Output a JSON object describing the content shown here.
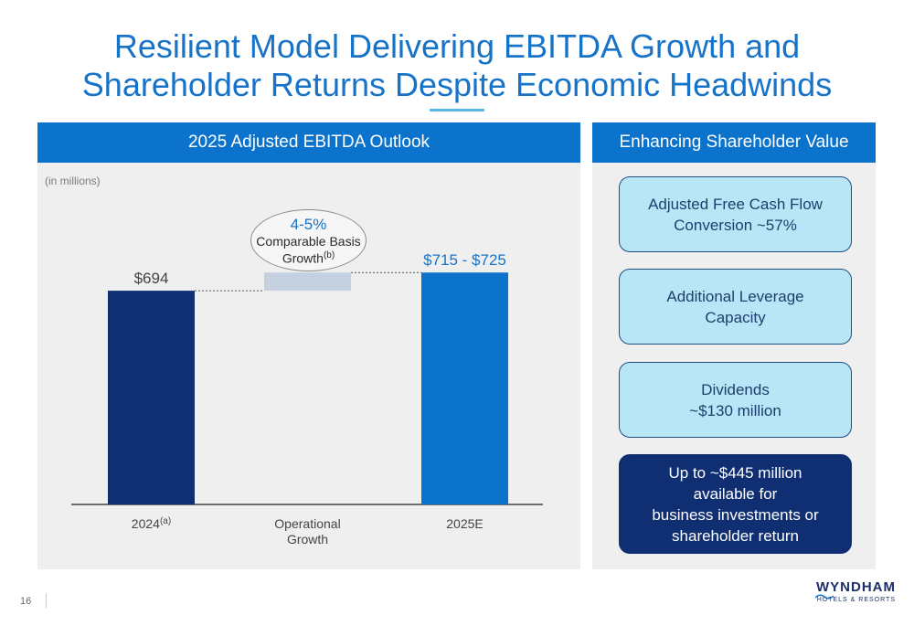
{
  "title": {
    "line1": "Resilient Model Delivering EBITDA Growth and",
    "line2": "Shareholder Returns Despite Economic Headwinds"
  },
  "left_panel": {
    "header": "2025 Adjusted EBITDA Outlook",
    "units": "(in millions)"
  },
  "chart_data": {
    "type": "bar",
    "subtype": "waterfall",
    "title": "2025 Adjusted EBITDA Outlook",
    "ylabel": "(in millions)",
    "ylim": [
      330,
      730
    ],
    "categories": [
      {
        "label": "2024",
        "footnote": "(a)"
      },
      {
        "label": "Operational Growth",
        "footnote": ""
      },
      {
        "label": "2025E",
        "footnote": ""
      }
    ],
    "bars": [
      {
        "name": "2024",
        "base": 0,
        "value": 694,
        "label": "$694",
        "color": "#0f2f72"
      },
      {
        "name": "Operational Growth",
        "base": 694,
        "value": 725,
        "label": "",
        "color": "#c5d1e0"
      },
      {
        "name": "2025E",
        "base": 0,
        "value": 725,
        "label": "$715 - $725",
        "color": "#0b73cc"
      }
    ],
    "annotation": {
      "pct": "4-5%",
      "line1": "Comparable Basis",
      "line2": "Growth",
      "footnote": "(b)"
    }
  },
  "right_panel": {
    "header": "Enhancing Shareholder Value",
    "cards": [
      {
        "line1": "Adjusted Free Cash Flow",
        "line2": "Conversion ~57%"
      },
      {
        "line1": "Additional Leverage",
        "line2": "Capacity"
      },
      {
        "line1": "Dividends",
        "line2": "~$130 million"
      },
      {
        "line1": "Up to ~$445 million",
        "line2": "available for",
        "line3": "business investments or",
        "line4": "shareholder return"
      }
    ]
  },
  "footer": {
    "page_number": "16",
    "brand": "WYNDHAM",
    "tagline": "HOTELS & RESORTS"
  }
}
